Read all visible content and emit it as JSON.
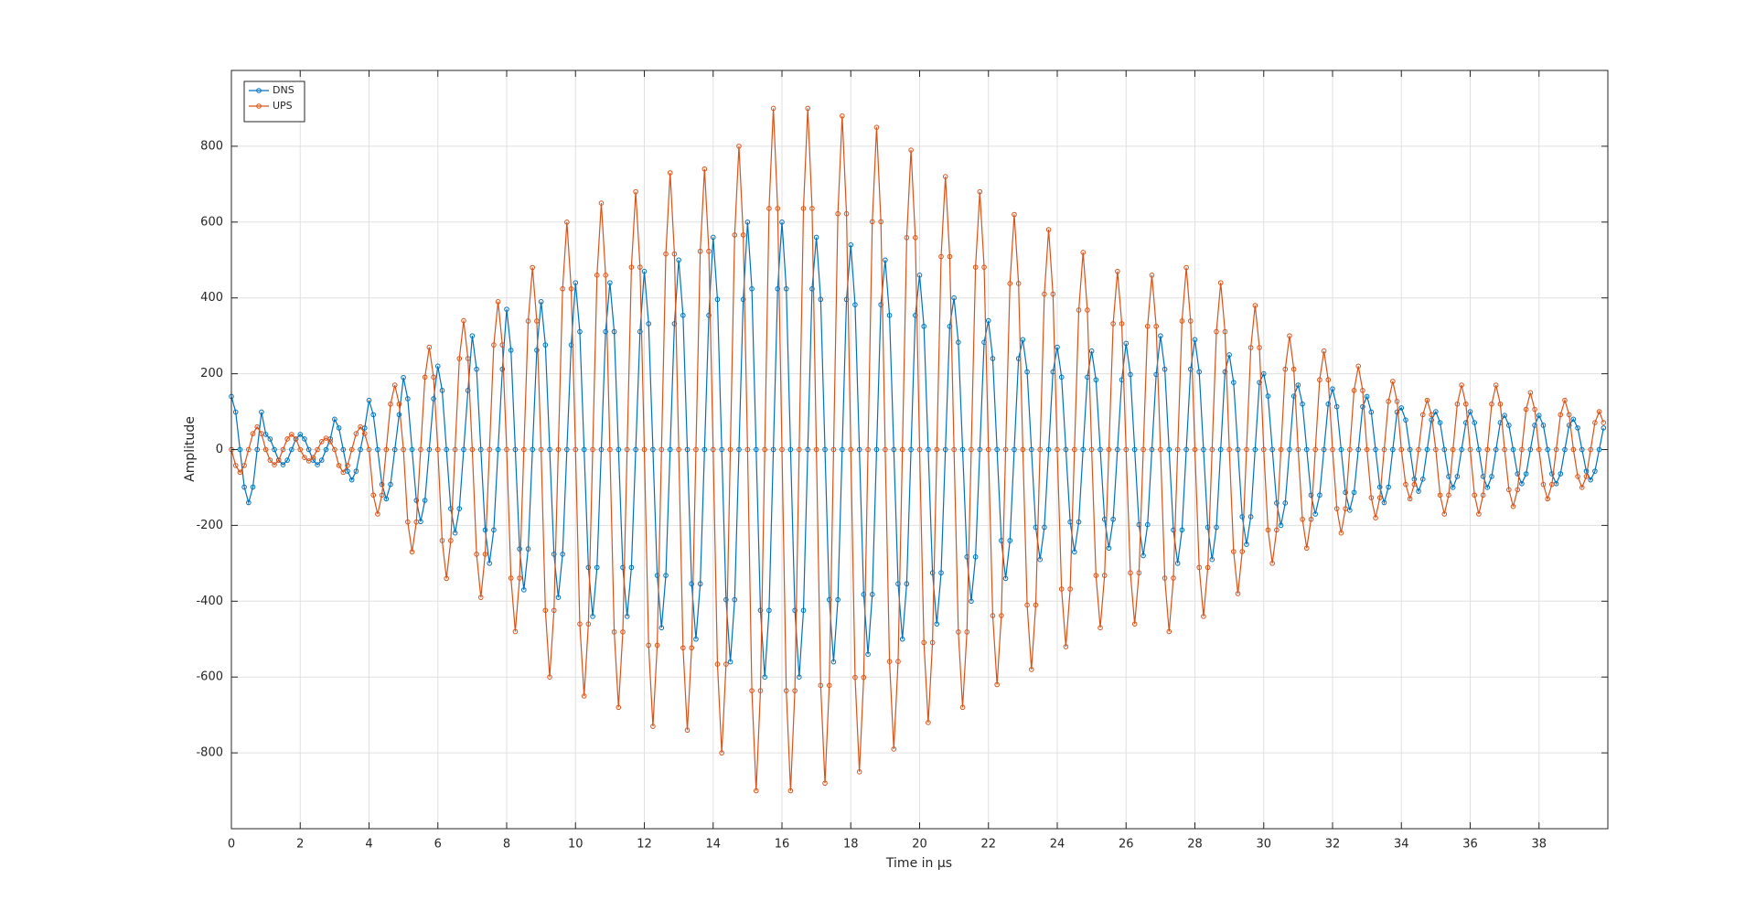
{
  "chart_data": {
    "type": "line",
    "xlabel": "Time in µs",
    "ylabel": "Amplitude",
    "xlim": [
      0,
      40
    ],
    "ylim": [
      -1000,
      1000
    ],
    "xticks": [
      0,
      2,
      4,
      6,
      8,
      10,
      12,
      14,
      16,
      18,
      20,
      22,
      24,
      26,
      28,
      30,
      32,
      34,
      36,
      38
    ],
    "yticks": [
      -800,
      -600,
      -400,
      -200,
      0,
      200,
      400,
      600,
      800
    ],
    "grid": true,
    "legend": "upper-left",
    "x": [
      0,
      0.125,
      0.25,
      0.375,
      0.5,
      0.625,
      0.75,
      0.875,
      1,
      1.125,
      1.25,
      1.375,
      1.5,
      1.625,
      1.75,
      1.875,
      2,
      2.125,
      2.25,
      2.375,
      2.5,
      2.625,
      2.75,
      2.875,
      3,
      3.125,
      3.25,
      3.375,
      3.5,
      3.625,
      3.75,
      3.875,
      4,
      4.125,
      4.25,
      4.375,
      4.5,
      4.625,
      4.75,
      4.875,
      5,
      5.125,
      5.25,
      5.375,
      5.5,
      5.625,
      5.75,
      5.875,
      6,
      6.125,
      6.25,
      6.375,
      6.5,
      6.625,
      6.75,
      6.875,
      7,
      7.125,
      7.25,
      7.375,
      7.5,
      7.625,
      7.75,
      7.875,
      8,
      8.125,
      8.25,
      8.375,
      8.5,
      8.625,
      8.75,
      8.875,
      9,
      9.125,
      9.25,
      9.375,
      9.5,
      9.625,
      9.75,
      9.875,
      10,
      10.125,
      10.25,
      10.375,
      10.5,
      10.625,
      10.75,
      10.875,
      11,
      11.125,
      11.25,
      11.375,
      11.5,
      11.625,
      11.75,
      11.875,
      12,
      12.125,
      12.25,
      12.375,
      12.5,
      12.625,
      12.75,
      12.875,
      13,
      13.125,
      13.25,
      13.375,
      13.5,
      13.625,
      13.75,
      13.875,
      14,
      14.125,
      14.25,
      14.375,
      14.5,
      14.625,
      14.75,
      14.875,
      15,
      15.125,
      15.25,
      15.375,
      15.5,
      15.625,
      15.75,
      15.875,
      16,
      16.125,
      16.25,
      16.375,
      16.5,
      16.625,
      16.75,
      16.875,
      17,
      17.125,
      17.25,
      17.375,
      17.5,
      17.625,
      17.75,
      17.875,
      18,
      18.125,
      18.25,
      18.375,
      18.5,
      18.625,
      18.75,
      18.875,
      19,
      19.125,
      19.25,
      19.375,
      19.5,
      19.625,
      19.75,
      19.875,
      20,
      20.125,
      20.25,
      20.375,
      20.5,
      20.625,
      20.75,
      20.875,
      21,
      21.125,
      21.25,
      21.375,
      21.5,
      21.625,
      21.75,
      21.875,
      22,
      22.125,
      22.25,
      22.375,
      22.5,
      22.625,
      22.75,
      22.875,
      23,
      23.125,
      23.25,
      23.375,
      23.5,
      23.625,
      23.75,
      23.875,
      24,
      24.125,
      24.25,
      24.375,
      24.5,
      24.625,
      24.75,
      24.875,
      25,
      25.125,
      25.25,
      25.375,
      25.5,
      25.625,
      25.75,
      25.875,
      26,
      26.125,
      26.25,
      26.375,
      26.5,
      26.625,
      26.75,
      26.875,
      27,
      27.125,
      27.25,
      27.375,
      27.5,
      27.625,
      27.75,
      27.875,
      28,
      28.125,
      28.25,
      28.375,
      28.5,
      28.625,
      28.75,
      28.875,
      29,
      29.125,
      29.25,
      29.375,
      29.5,
      29.625,
      29.75,
      29.875,
      30,
      30.125,
      30.25,
      30.375,
      30.5,
      30.625,
      30.75,
      30.875,
      31,
      31.125,
      31.25,
      31.375,
      31.5,
      31.625,
      31.75,
      31.875,
      32,
      32.125,
      32.25,
      32.375,
      32.5,
      32.625,
      32.75,
      32.875,
      33,
      33.125,
      33.25,
      33.375,
      33.5,
      33.625,
      33.75,
      33.875,
      34,
      34.125,
      34.25,
      34.375,
      34.5,
      34.625,
      34.75,
      34.875,
      35,
      35.125,
      35.25,
      35.375,
      35.5,
      35.625,
      35.75,
      35.875,
      36,
      36.125,
      36.25,
      36.375,
      36.5,
      36.625,
      36.75,
      36.875,
      37,
      37.125,
      37.25,
      37.375,
      37.5,
      37.625,
      37.75,
      37.875,
      38,
      38.125,
      38.25,
      38.375,
      38.5,
      38.625,
      38.75,
      38.875,
      39,
      39.125,
      39.25,
      39.375,
      39.5,
      39.625,
      39.75,
      39.875
    ],
    "series": [
      {
        "name": "DNS",
        "color": "#0072BD",
        "values": [
          140,
          99,
          0,
          -99,
          -140,
          -99,
          0,
          99,
          40,
          28,
          0,
          -28,
          -40,
          -28,
          0,
          28,
          40,
          28,
          0,
          -28,
          -40,
          -28,
          0,
          28,
          80,
          57,
          0,
          -57,
          -80,
          -57,
          0,
          57,
          130,
          92,
          0,
          -92,
          -130,
          -92,
          0,
          92,
          190,
          134,
          0,
          -134,
          -190,
          -134,
          0,
          134,
          220,
          156,
          0,
          -156,
          -220,
          -156,
          0,
          156,
          300,
          212,
          0,
          -212,
          -300,
          -212,
          0,
          212,
          370,
          262,
          0,
          -262,
          -370,
          -262,
          0,
          262,
          390,
          276,
          0,
          -276,
          -390,
          -276,
          0,
          276,
          440,
          311,
          0,
          -311,
          -440,
          -311,
          0,
          311,
          440,
          311,
          0,
          -311,
          -440,
          -311,
          0,
          311,
          470,
          332,
          0,
          -332,
          -470,
          -332,
          0,
          332,
          500,
          354,
          0,
          -354,
          -500,
          -354,
          0,
          354,
          560,
          396,
          0,
          -396,
          -560,
          -396,
          0,
          396,
          600,
          424,
          0,
          -424,
          -600,
          -424,
          0,
          424,
          600,
          424,
          0,
          -424,
          -600,
          -424,
          0,
          424,
          560,
          396,
          0,
          -396,
          -560,
          -396,
          0,
          396,
          540,
          382,
          0,
          -382,
          -540,
          -382,
          0,
          382,
          500,
          354,
          0,
          -354,
          -500,
          -354,
          0,
          354,
          460,
          325,
          0,
          -325,
          -460,
          -325,
          0,
          325,
          400,
          283,
          0,
          -283,
          -400,
          -283,
          0,
          283,
          340,
          240,
          0,
          -240,
          -340,
          -240,
          0,
          240,
          290,
          205,
          0,
          -205,
          -290,
          -205,
          0,
          205,
          270,
          191,
          0,
          -191,
          -270,
          -191,
          0,
          191,
          260,
          184,
          0,
          -184,
          -260,
          -184,
          0,
          184,
          280,
          198,
          0,
          -198,
          -280,
          -198,
          0,
          198,
          300,
          212,
          0,
          -212,
          -300,
          -212,
          0,
          212,
          290,
          205,
          0,
          -205,
          -290,
          -205,
          0,
          205,
          250,
          177,
          0,
          -177,
          -250,
          -177,
          0,
          177,
          200,
          141,
          0,
          -141,
          -200,
          -141,
          0,
          141,
          170,
          120,
          0,
          -120,
          -170,
          -120,
          0,
          120,
          160,
          113,
          0,
          -113,
          -160,
          -113,
          0,
          113,
          140,
          99,
          0,
          -99,
          -140,
          -99,
          0,
          99,
          110,
          78,
          0,
          -78,
          -110,
          -78,
          0,
          78,
          100,
          71,
          0,
          -71,
          -100,
          -71,
          0,
          71,
          100,
          71,
          0,
          -71,
          -100,
          -71,
          0,
          71,
          90,
          64,
          0,
          -64,
          -90,
          -64,
          0,
          64,
          90,
          64,
          0,
          -64,
          -90,
          -64,
          0,
          64,
          80,
          57,
          0,
          -57,
          -80,
          -57,
          0,
          57
        ]
      },
      {
        "name": "UPS",
        "color": "#D95319",
        "values": [
          0,
          -42,
          -60,
          -42,
          0,
          42,
          60,
          42,
          0,
          -28,
          -40,
          -28,
          0,
          28,
          40,
          28,
          0,
          -21,
          -30,
          -21,
          0,
          21,
          30,
          21,
          0,
          -42,
          -60,
          -42,
          0,
          42,
          60,
          42,
          0,
          -120,
          -170,
          -120,
          0,
          120,
          170,
          120,
          0,
          -191,
          -270,
          -191,
          0,
          191,
          270,
          191,
          0,
          -240,
          -340,
          -240,
          0,
          240,
          340,
          240,
          0,
          -276,
          -390,
          -276,
          0,
          276,
          390,
          276,
          0,
          -339,
          -480,
          -339,
          0,
          339,
          480,
          339,
          0,
          -424,
          -600,
          -424,
          0,
          424,
          600,
          424,
          0,
          -460,
          -650,
          -460,
          0,
          460,
          650,
          460,
          0,
          -481,
          -680,
          -481,
          0,
          481,
          680,
          481,
          0,
          -516,
          -730,
          -516,
          0,
          516,
          730,
          516,
          0,
          -523,
          -740,
          -523,
          0,
          523,
          740,
          523,
          0,
          -566,
          -800,
          -566,
          0,
          566,
          800,
          566,
          0,
          -636,
          -900,
          -636,
          0,
          636,
          900,
          636,
          0,
          -636,
          -900,
          -636,
          0,
          636,
          900,
          636,
          0,
          -622,
          -880,
          -622,
          0,
          622,
          880,
          622,
          0,
          -601,
          -850,
          -601,
          0,
          601,
          850,
          601,
          0,
          -559,
          -790,
          -559,
          0,
          559,
          790,
          559,
          0,
          -509,
          -720,
          -509,
          0,
          509,
          720,
          509,
          0,
          -481,
          -680,
          -481,
          0,
          481,
          680,
          481,
          0,
          -438,
          -620,
          -438,
          0,
          438,
          620,
          438,
          0,
          -410,
          -580,
          -410,
          0,
          410,
          580,
          410,
          0,
          -368,
          -520,
          -368,
          0,
          368,
          520,
          368,
          0,
          -332,
          -470,
          -332,
          0,
          332,
          470,
          332,
          0,
          -325,
          -460,
          -325,
          0,
          325,
          460,
          325,
          0,
          -339,
          -480,
          -339,
          0,
          339,
          480,
          339,
          0,
          -311,
          -440,
          -311,
          0,
          311,
          440,
          311,
          0,
          -269,
          -380,
          -269,
          0,
          269,
          380,
          269,
          0,
          -212,
          -300,
          -212,
          0,
          212,
          300,
          212,
          0,
          -184,
          -260,
          -184,
          0,
          184,
          260,
          184,
          0,
          -156,
          -220,
          -156,
          0,
          156,
          220,
          156,
          0,
          -127,
          -180,
          -127,
          0,
          127,
          180,
          127,
          0,
          -92,
          -130,
          -92,
          0,
          92,
          130,
          92,
          0,
          -120,
          -170,
          -120,
          0,
          120,
          170,
          120,
          0,
          -120,
          -170,
          -120,
          0,
          120,
          170,
          120,
          0,
          -106,
          -150,
          -106,
          0,
          106,
          150,
          106,
          0,
          -92,
          -130,
          -92,
          0,
          92,
          130,
          92,
          0,
          -71,
          -100,
          -71,
          0,
          71,
          100,
          71
        ]
      }
    ]
  }
}
